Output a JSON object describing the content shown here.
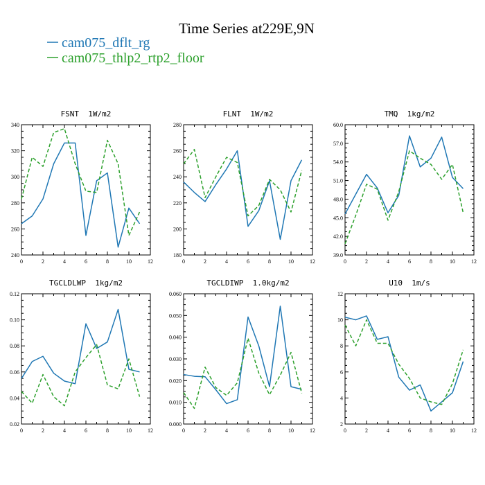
{
  "page": {
    "title": "Time Series at229E,9N"
  },
  "legend": [
    {
      "name": "cam075_dflt_rg",
      "color": "#1f77b4",
      "style": "solid"
    },
    {
      "name": "cam075_thlp2_rtp2_floor",
      "color": "#2ca02c",
      "style": "dashed"
    }
  ],
  "chart_data": [
    {
      "type": "line",
      "title": "FSNT  1W/m2",
      "x": [
        0,
        1,
        2,
        3,
        4,
        5,
        6,
        7,
        8,
        9,
        10,
        11
      ],
      "xlim": [
        0,
        12
      ],
      "xticks": [
        0,
        1,
        2,
        3,
        4,
        5,
        6,
        7,
        8,
        9,
        10,
        11,
        12
      ],
      "ylim": [
        240,
        340
      ],
      "yticks": [
        "240",
        "260",
        "280",
        "300",
        "320",
        "340"
      ],
      "series": [
        {
          "name": "cam075_dflt_rg",
          "values": [
            264,
            270,
            283,
            310,
            326,
            326,
            255,
            297,
            303,
            246,
            276,
            264
          ]
        },
        {
          "name": "cam075_thlp2_rtp2_floor",
          "values": [
            283,
            315,
            308,
            334,
            337,
            310,
            289,
            288,
            328,
            310,
            255,
            273
          ]
        }
      ]
    },
    {
      "type": "line",
      "title": "FLNT  1W/m2",
      "x": [
        0,
        1,
        2,
        3,
        4,
        5,
        6,
        7,
        8,
        9,
        10,
        11
      ],
      "xlim": [
        0,
        12
      ],
      "xticks": [
        0,
        1,
        2,
        3,
        4,
        5,
        6,
        7,
        8,
        9,
        10,
        11,
        12
      ],
      "ylim": [
        180,
        280
      ],
      "yticks": [
        "180",
        "200",
        "220",
        "240",
        "260",
        "280"
      ],
      "series": [
        {
          "name": "cam075_dflt_rg",
          "values": [
            236,
            228,
            221,
            234,
            246,
            260,
            202,
            214,
            237,
            192,
            237,
            253
          ]
        },
        {
          "name": "cam075_thlp2_rtp2_floor",
          "values": [
            250,
            261,
            224,
            240,
            255,
            251,
            210,
            218,
            238,
            230,
            213,
            245
          ]
        }
      ]
    },
    {
      "type": "line",
      "title": "TMQ  1kg/m2",
      "x": [
        0,
        1,
        2,
        3,
        4,
        5,
        6,
        7,
        8,
        9,
        10,
        11
      ],
      "xlim": [
        0,
        12
      ],
      "xticks": [
        0,
        1,
        2,
        3,
        4,
        5,
        6,
        7,
        8,
        9,
        10,
        11,
        12
      ],
      "ylim": [
        39.0,
        60.0
      ],
      "yticks": [
        "39.0",
        "42.0",
        "45.0",
        "48.0",
        "51.0",
        "54.0",
        "57.0",
        "60.0"
      ],
      "series": [
        {
          "name": "cam075_dflt_rg",
          "values": [
            45.6,
            48.8,
            52.0,
            49.8,
            45.8,
            48.6,
            58.2,
            53.2,
            54.6,
            58.0,
            51.5,
            49.7
          ]
        },
        {
          "name": "cam075_thlp2_rtp2_floor",
          "values": [
            40.8,
            45.4,
            50.4,
            49.6,
            44.6,
            49.2,
            55.8,
            54.6,
            53.6,
            51.2,
            53.6,
            45.8
          ]
        }
      ]
    },
    {
      "type": "line",
      "title": "TGCLDLWP  1kg/m2",
      "x": [
        0,
        1,
        2,
        3,
        4,
        5,
        6,
        7,
        8,
        9,
        10,
        11
      ],
      "xlim": [
        0,
        12
      ],
      "xticks": [
        0,
        1,
        2,
        3,
        4,
        5,
        6,
        7,
        8,
        9,
        10,
        11,
        12
      ],
      "ylim": [
        0.02,
        0.12
      ],
      "yticks": [
        "0.02",
        "0.04",
        "0.06",
        "0.08",
        "0.10",
        "0.12"
      ],
      "series": [
        {
          "name": "cam075_dflt_rg",
          "values": [
            0.055,
            0.068,
            0.072,
            0.059,
            0.053,
            0.051,
            0.097,
            0.078,
            0.083,
            0.108,
            0.062,
            0.06
          ]
        },
        {
          "name": "cam075_thlp2_rtp2_floor",
          "values": [
            0.045,
            0.036,
            0.058,
            0.041,
            0.034,
            0.06,
            0.071,
            0.081,
            0.05,
            0.047,
            0.07,
            0.041
          ]
        }
      ]
    },
    {
      "type": "line",
      "title": "TGCLDIWP  1.0kg/m2",
      "x": [
        0,
        1,
        2,
        3,
        4,
        5,
        6,
        7,
        8,
        9,
        10,
        11
      ],
      "xlim": [
        0,
        12
      ],
      "xticks": [
        0,
        1,
        2,
        3,
        4,
        5,
        6,
        7,
        8,
        9,
        10,
        11,
        12
      ],
      "ylim": [
        0.0,
        0.06
      ],
      "yticks": [
        "0.000",
        "0.010",
        "0.020",
        "0.030",
        "0.040",
        "0.050",
        "0.060"
      ],
      "series": [
        {
          "name": "cam075_dflt_rg",
          "values": [
            0.0228,
            0.022,
            0.0218,
            0.0158,
            0.0094,
            0.0112,
            0.0493,
            0.036,
            0.0172,
            0.0543,
            0.0172,
            0.016
          ]
        },
        {
          "name": "cam075_thlp2_rtp2_floor",
          "values": [
            0.0145,
            0.0072,
            0.0262,
            0.0168,
            0.0132,
            0.019,
            0.0395,
            0.0235,
            0.0135,
            0.0225,
            0.033,
            0.0142
          ]
        }
      ]
    },
    {
      "type": "line",
      "title": "U10  1m/s",
      "x": [
        0,
        1,
        2,
        3,
        4,
        5,
        6,
        7,
        8,
        9,
        10,
        11
      ],
      "xlim": [
        0,
        12
      ],
      "xticks": [
        0,
        1,
        2,
        3,
        4,
        5,
        6,
        7,
        8,
        9,
        10,
        11,
        12
      ],
      "ylim": [
        2,
        12
      ],
      "yticks": [
        "2",
        "4",
        "6",
        "8",
        "10",
        "12"
      ],
      "series": [
        {
          "name": "cam075_dflt_rg",
          "values": [
            10.2,
            10.0,
            10.3,
            8.5,
            8.7,
            5.6,
            4.6,
            5.0,
            3.0,
            3.7,
            4.4,
            6.8
          ]
        },
        {
          "name": "cam075_thlp2_rtp2_floor",
          "values": [
            9.6,
            8.0,
            10.0,
            8.2,
            8.2,
            6.6,
            5.5,
            4.0,
            3.7,
            3.5,
            5.1,
            7.7
          ]
        }
      ]
    }
  ]
}
